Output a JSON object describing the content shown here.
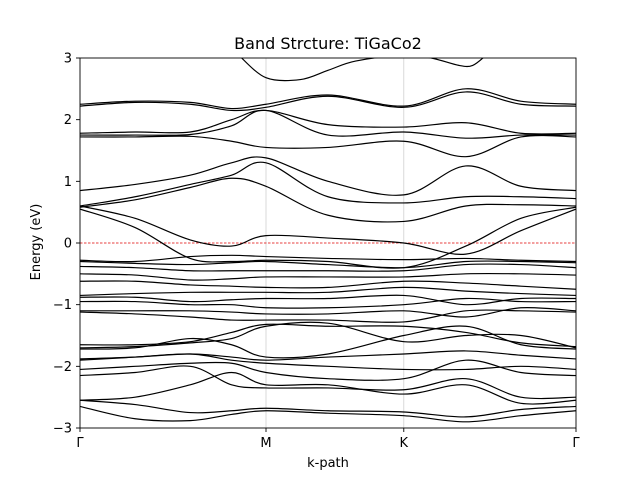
{
  "chart_data": {
    "type": "line",
    "title": "Band Strcture: TiGaCo2",
    "xlabel": "k-path",
    "ylabel": "Energy (eV)",
    "ylim": [
      -3,
      3
    ],
    "yticks": [
      -3,
      -2,
      -1,
      0,
      1,
      2,
      3
    ],
    "ytick_labels": [
      "−3",
      "−2",
      "−1",
      "0",
      "1",
      "2",
      "3"
    ],
    "xlim": [
      0,
      3.6
    ],
    "high_symmetry_points": [
      {
        "label": "Γ",
        "x": 0
      },
      {
        "label": "M",
        "x": 1.35
      },
      {
        "label": "K",
        "x": 2.35
      },
      {
        "label": "Γ",
        "x": 3.6
      }
    ],
    "fermi_level": 0,
    "fermi_color": "#e00000",
    "band_color": "#000000",
    "series": [
      {
        "x": [
          0,
          0.4,
          0.8,
          1.1,
          1.35,
          1.8,
          2.35,
          2.8,
          3.2,
          3.6
        ],
        "values": [
          -2.65,
          -2.85,
          -2.88,
          -2.78,
          -2.72,
          -2.76,
          -2.8,
          -2.9,
          -2.8,
          -2.72
        ]
      },
      {
        "x": [
          0,
          0.4,
          0.8,
          1.1,
          1.35,
          1.8,
          2.35,
          2.8,
          3.2,
          3.6
        ],
        "values": [
          -2.55,
          -2.62,
          -2.75,
          -2.72,
          -2.68,
          -2.72,
          -2.74,
          -2.82,
          -2.7,
          -2.65
        ]
      },
      {
        "x": [
          0,
          0.4,
          0.8,
          1.1,
          1.35,
          1.8,
          2.35,
          2.8,
          3.2,
          3.6
        ],
        "values": [
          -2.55,
          -2.5,
          -2.3,
          -2.1,
          -2.3,
          -2.3,
          -2.45,
          -2.3,
          -2.6,
          -2.55
        ]
      },
      {
        "x": [
          0,
          0.4,
          0.8,
          1.1,
          1.35,
          1.8,
          2.35,
          2.8,
          3.2,
          3.6
        ],
        "values": [
          -2.15,
          -2.1,
          -2.0,
          -2.3,
          -2.35,
          -2.35,
          -2.38,
          -2.2,
          -2.5,
          -2.5
        ]
      },
      {
        "x": [
          0,
          0.4,
          0.8,
          1.1,
          1.35,
          1.8,
          2.35,
          2.8,
          3.2,
          3.6
        ],
        "values": [
          -2.05,
          -2.0,
          -1.95,
          -1.95,
          -2.1,
          -2.2,
          -2.2,
          -1.9,
          -2.1,
          -2.15
        ]
      },
      {
        "x": [
          0,
          0.4,
          0.8,
          1.1,
          1.35,
          1.8,
          2.35,
          2.8,
          3.2,
          3.6
        ],
        "values": [
          -1.9,
          -1.85,
          -1.8,
          -1.9,
          -1.95,
          -2.0,
          -2.05,
          -2.05,
          -2.0,
          -2.05
        ]
      },
      {
        "x": [
          0,
          0.4,
          0.8,
          1.1,
          1.35,
          1.8,
          2.35,
          2.8,
          3.2,
          3.6
        ],
        "values": [
          -1.88,
          -1.85,
          -1.8,
          -1.85,
          -1.9,
          -1.85,
          -1.8,
          -1.75,
          -1.82,
          -1.88
        ]
      },
      {
        "x": [
          0,
          0.4,
          0.8,
          1.1,
          1.35,
          1.8,
          2.35,
          2.8,
          3.2,
          3.6
        ],
        "values": [
          -1.72,
          -1.7,
          -1.55,
          -1.65,
          -1.85,
          -1.8,
          -1.5,
          -1.35,
          -1.65,
          -1.72
        ]
      },
      {
        "x": [
          0,
          0.4,
          0.8,
          1.1,
          1.35,
          1.8,
          2.35,
          2.8,
          3.2,
          3.6
        ],
        "values": [
          -1.7,
          -1.68,
          -1.62,
          -1.55,
          -1.35,
          -1.3,
          -1.6,
          -1.5,
          -1.5,
          -1.7
        ]
      },
      {
        "x": [
          0,
          0.4,
          0.8,
          1.1,
          1.35,
          1.8,
          2.35,
          2.8,
          3.2,
          3.6
        ],
        "values": [
          -1.65,
          -1.65,
          -1.6,
          -1.45,
          -1.32,
          -1.35,
          -1.35,
          -1.45,
          -1.62,
          -1.68
        ]
      },
      {
        "x": [
          0,
          0.4,
          0.8,
          1.1,
          1.35,
          1.8,
          2.35,
          2.8,
          3.2,
          3.6
        ],
        "values": [
          -1.12,
          -1.15,
          -1.2,
          -1.25,
          -1.25,
          -1.25,
          -1.28,
          -1.1,
          -1.1,
          -1.12
        ]
      },
      {
        "x": [
          0,
          0.4,
          0.8,
          1.1,
          1.35,
          1.8,
          2.35,
          2.8,
          3.2,
          3.6
        ],
        "values": [
          -1.1,
          -1.1,
          -1.1,
          -1.12,
          -1.15,
          -1.15,
          -1.1,
          -1.2,
          -1.05,
          -1.1
        ]
      },
      {
        "x": [
          0,
          0.4,
          0.8,
          1.1,
          1.35,
          1.8,
          2.35,
          2.8,
          3.2,
          3.6
        ],
        "values": [
          -0.95,
          -0.95,
          -1.0,
          -1.0,
          -1.05,
          -1.05,
          -1.0,
          -0.9,
          -0.95,
          -0.95
        ]
      },
      {
        "x": [
          0,
          0.4,
          0.8,
          1.1,
          1.35,
          1.8,
          2.35,
          2.8,
          3.2,
          3.6
        ],
        "values": [
          -0.88,
          -0.88,
          -0.95,
          -0.92,
          -0.9,
          -0.9,
          -0.85,
          -1.0,
          -0.9,
          -0.9
        ]
      },
      {
        "x": [
          0,
          0.4,
          0.8,
          1.1,
          1.35,
          1.8,
          2.35,
          2.8,
          3.2,
          3.6
        ],
        "values": [
          -0.85,
          -0.82,
          -0.8,
          -0.8,
          -0.8,
          -0.8,
          -0.72,
          -0.78,
          -0.82,
          -0.85
        ]
      },
      {
        "x": [
          0,
          0.4,
          0.8,
          1.1,
          1.35,
          1.8,
          2.35,
          2.8,
          3.2,
          3.6
        ],
        "values": [
          -0.62,
          -0.62,
          -0.68,
          -0.7,
          -0.72,
          -0.72,
          -0.62,
          -0.65,
          -0.7,
          -0.75
        ]
      },
      {
        "x": [
          0,
          0.4,
          0.8,
          1.1,
          1.35,
          1.8,
          2.35,
          2.8,
          3.2,
          3.6
        ],
        "values": [
          -0.5,
          -0.52,
          -0.6,
          -0.58,
          -0.55,
          -0.55,
          -0.55,
          -0.5,
          -0.5,
          -0.52
        ]
      },
      {
        "x": [
          0,
          0.4,
          0.8,
          1.1,
          1.35,
          1.8,
          2.35,
          2.8,
          3.2,
          3.6
        ],
        "values": [
          -0.38,
          -0.4,
          -0.45,
          -0.45,
          -0.45,
          -0.45,
          -0.45,
          -0.35,
          -0.35,
          -0.4
        ]
      },
      {
        "x": [
          0,
          0.4,
          0.8,
          1.1,
          1.35,
          1.8,
          2.35,
          2.8,
          3.2,
          3.6
        ],
        "values": [
          -0.3,
          -0.33,
          -0.35,
          -0.32,
          -0.3,
          -0.35,
          -0.4,
          -0.3,
          -0.3,
          -0.32
        ]
      },
      {
        "x": [
          0,
          0.4,
          0.8,
          1.1,
          1.35,
          1.8,
          2.35,
          2.8,
          3.2,
          3.6
        ],
        "values": [
          -0.28,
          -0.3,
          -0.22,
          -0.2,
          -0.22,
          -0.25,
          -0.27,
          -0.25,
          -0.28,
          -0.3
        ]
      },
      {
        "x": [
          0,
          0.4,
          0.8,
          1.1,
          1.35,
          1.8,
          2.35,
          2.8,
          3.2,
          3.6
        ],
        "values": [
          0.6,
          0.4,
          0.05,
          -0.05,
          0.12,
          0.08,
          0.0,
          -0.18,
          0.2,
          0.55
        ]
      },
      {
        "x": [
          0,
          0.4,
          0.8,
          1.1,
          1.35,
          1.8,
          2.35,
          2.8,
          3.2,
          3.6
        ],
        "values": [
          0.55,
          0.25,
          -0.25,
          -0.3,
          -0.28,
          -0.3,
          -0.4,
          -0.05,
          0.4,
          0.58
        ]
      },
      {
        "x": [
          0,
          0.4,
          0.8,
          1.1,
          1.35,
          1.8,
          2.35,
          2.8,
          3.2,
          3.6
        ],
        "values": [
          0.58,
          0.7,
          0.9,
          1.05,
          0.92,
          0.45,
          0.35,
          0.6,
          0.62,
          0.6
        ]
      },
      {
        "x": [
          0,
          0.4,
          0.8,
          1.1,
          1.35,
          1.8,
          2.35,
          2.8,
          3.2,
          3.6
        ],
        "values": [
          0.6,
          0.75,
          0.95,
          1.1,
          1.3,
          0.75,
          0.65,
          0.75,
          0.75,
          0.72
        ]
      },
      {
        "x": [
          0,
          0.4,
          0.8,
          1.1,
          1.35,
          1.8,
          2.35,
          2.8,
          3.2,
          3.6
        ],
        "values": [
          0.85,
          0.95,
          1.1,
          1.3,
          1.38,
          1.0,
          0.78,
          1.25,
          0.92,
          0.85
        ]
      },
      {
        "x": [
          0,
          0.4,
          0.8,
          1.1,
          1.35,
          1.8,
          2.35,
          2.8,
          3.2,
          3.6
        ],
        "values": [
          1.72,
          1.72,
          1.73,
          1.65,
          1.55,
          1.55,
          1.65,
          1.4,
          1.72,
          1.72
        ]
      },
      {
        "x": [
          0,
          0.4,
          0.8,
          1.1,
          1.35,
          1.8,
          2.35,
          2.8,
          3.2,
          3.6
        ],
        "values": [
          1.75,
          1.75,
          1.76,
          1.9,
          2.15,
          1.75,
          1.8,
          1.7,
          1.75,
          1.75
        ]
      },
      {
        "x": [
          0,
          0.4,
          0.8,
          1.1,
          1.35,
          1.8,
          2.35,
          2.8,
          3.2,
          3.6
        ],
        "values": [
          1.78,
          1.8,
          1.8,
          2.0,
          2.15,
          1.92,
          1.88,
          1.95,
          1.78,
          1.78
        ]
      },
      {
        "x": [
          0,
          0.4,
          0.8,
          1.1,
          1.35,
          1.8,
          2.35,
          2.8,
          3.2,
          3.6
        ],
        "values": [
          2.22,
          2.28,
          2.25,
          2.15,
          2.2,
          2.38,
          2.2,
          2.45,
          2.25,
          2.22
        ]
      },
      {
        "x": [
          0,
          0.4,
          0.8,
          1.1,
          1.35,
          1.8,
          2.35,
          2.8,
          3.2,
          3.6
        ],
        "values": [
          2.25,
          2.3,
          2.28,
          2.18,
          2.25,
          2.4,
          2.22,
          2.5,
          2.3,
          2.25
        ]
      },
      {
        "x": [
          1.15,
          1.35,
          1.6,
          1.8,
          2.0,
          2.35,
          2.55,
          2.75,
          2.85,
          2.95
        ],
        "values": [
          3.05,
          2.68,
          2.65,
          2.8,
          2.95,
          3.05,
          3.0,
          2.88,
          2.88,
          3.05
        ]
      }
    ]
  }
}
